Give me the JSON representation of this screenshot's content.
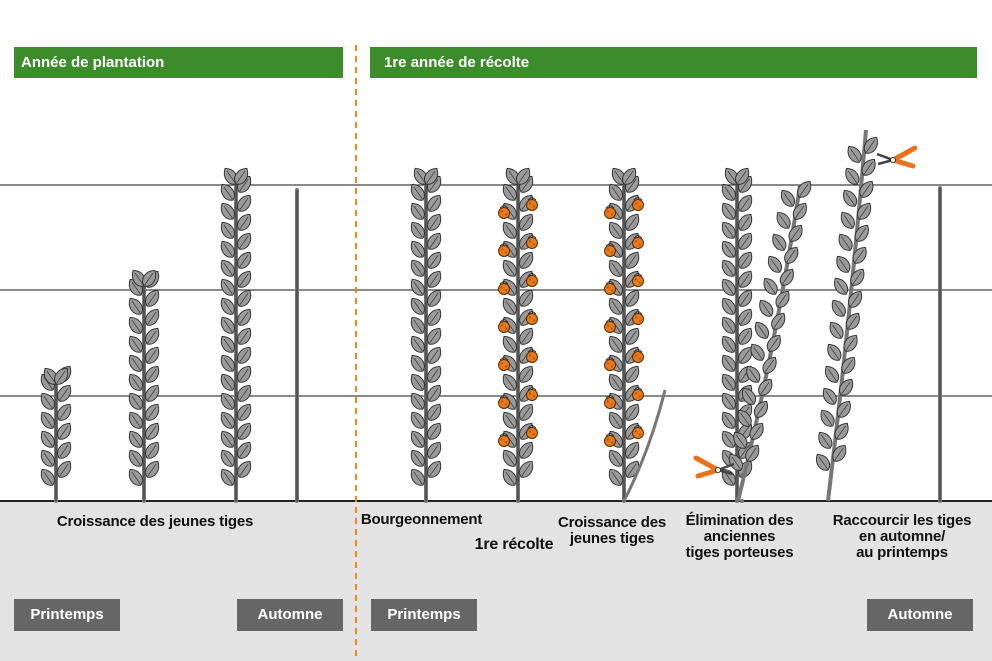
{
  "headers": {
    "left": "Année de plantation",
    "right": "1re année de récolte"
  },
  "captions": {
    "young_growth_year1": "Croissance des jeunes tiges",
    "budding": "Bourgeonnement",
    "first_harvest": "1re récolte",
    "young_growth_year2": "Croissance des\njeunes tiges",
    "remove_old": "Élimination des\nanciennes\ntiges porteuses",
    "shorten": "Raccourcir les tiges\nen automne/\nau printemps"
  },
  "seasons": {
    "left_spring": "Printemps",
    "left_autumn": "Automne",
    "right_spring": "Printemps",
    "right_autumn": "Automne"
  },
  "colors": {
    "header_green": "#3c8c2c",
    "season_gray": "#666666",
    "ground": "#e3e3e3",
    "divider_orange": "#f08a1c",
    "leaf": "#9a9a9a",
    "fruit": "#e87a1e",
    "pruner": "#e8731a"
  },
  "icons": [
    "leaf-icon",
    "raspberry-icon",
    "pruning-shears-icon"
  ]
}
